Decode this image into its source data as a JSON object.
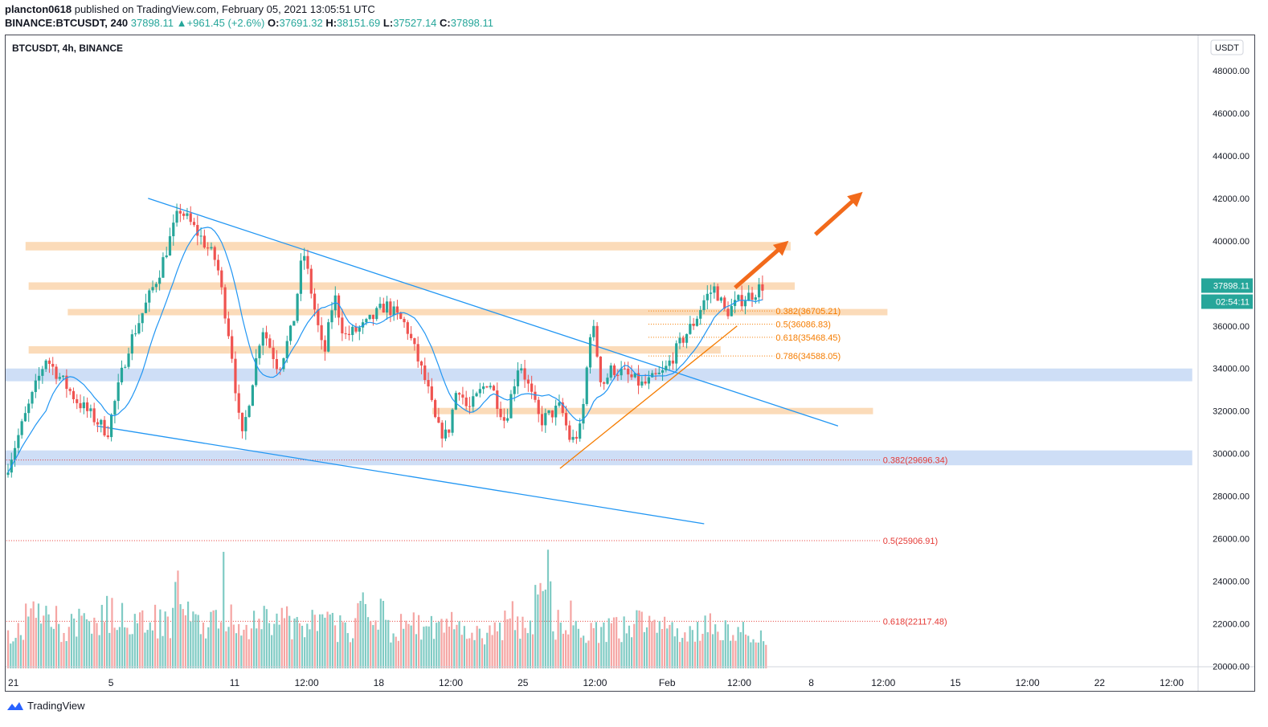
{
  "header": {
    "publisher": "plancton0618",
    "published_text": "published on TradingView.com, February 05, 2021 13:05:51 UTC",
    "symbol": "BINANCE:BTCUSDT, 240",
    "last": "37898.11",
    "change": "+961.45 (+2.6%)",
    "o_label": "O:",
    "o": "37691.32",
    "h_label": "H:",
    "h": "38151.69",
    "l_label": "L:",
    "l": "37527.14",
    "c_label": "C:",
    "c": "37898.11"
  },
  "chart_label": "BTCUSDT, 4h, BINANCE",
  "currency_label": "USDT",
  "price_tag": "37898.11",
  "countdown_tag": "02:54:11",
  "brand": "TradingView",
  "colors": {
    "up": "#26a69a",
    "down": "#ef5350",
    "zone_orange": "#fbd7b1",
    "zone_blue": "#c5d8f5",
    "trendline": "#2196f3",
    "fib_orange": "#f57c00",
    "fib_red": "#e53935",
    "arrow": "#f26a1b"
  },
  "chart_data": {
    "type": "candlestick",
    "ylim": [
      20000,
      49500
    ],
    "y_ticks": [
      "48000.00",
      "46000.00",
      "44000.00",
      "42000.00",
      "40000.00",
      "38000.00",
      "36000.00",
      "34000.00",
      "32000.00",
      "30000.00",
      "28000.00",
      "26000.00",
      "24000.00",
      "22000.00",
      "20000.00"
    ],
    "y_tick_values": [
      48000,
      46000,
      44000,
      42000,
      40000,
      38000,
      36000,
      34000,
      32000,
      30000,
      28000,
      26000,
      24000,
      22000,
      20000
    ],
    "x_ticks": [
      {
        "label": "21",
        "t": 0
      },
      {
        "label": "5",
        "t": 5
      },
      {
        "label": "11",
        "t": 11
      },
      {
        "label": "12:00",
        "t": 14.5
      },
      {
        "label": "18",
        "t": 18
      },
      {
        "label": "12:00",
        "t": 21.5
      },
      {
        "label": "25",
        "t": 25
      },
      {
        "label": "12:00",
        "t": 28.5
      },
      {
        "label": "Feb",
        "t": 32
      },
      {
        "label": "12:00",
        "t": 35.5
      },
      {
        "label": "8",
        "t": 39
      },
      {
        "label": "12:00",
        "t": 42.5
      },
      {
        "label": "15",
        "t": 46
      },
      {
        "label": "12:00",
        "t": 49.5
      },
      {
        "label": "22",
        "t": 53
      },
      {
        "label": "12:00",
        "t": 56.5
      }
    ],
    "price_series": {
      "name": "",
      "t": [
        0,
        2,
        3.5,
        5,
        6,
        7.5,
        8.5,
        9.5,
        10.3,
        11,
        11.5,
        12.5,
        13.3,
        14,
        14.5,
        15.5,
        16,
        16.5,
        17.5,
        18.5,
        19.5,
        20.5,
        21,
        21.5,
        22,
        22.5,
        23.5,
        24.3,
        25,
        26,
        27,
        27.5,
        28,
        28.5,
        29,
        29.5,
        30,
        31,
        32,
        33,
        33.5,
        34,
        34.5,
        35,
        35.7,
        36.3,
        36.8
      ],
      "close": [
        29000,
        34500,
        32500,
        31000,
        35000,
        38500,
        41500,
        40200,
        39000,
        35000,
        30500,
        36000,
        34000,
        36000,
        39600,
        34500,
        37500,
        35500,
        36000,
        37000,
        36000,
        33200,
        31200,
        30800,
        33300,
        32000,
        33500,
        31500,
        34400,
        31500,
        32200,
        30500,
        31200,
        36400,
        33200,
        34000,
        33800,
        33200,
        33800,
        35500,
        36200,
        37300,
        37800,
        36600,
        37200,
        37500,
        37898.11
      ]
    },
    "volume_series": {
      "name": "",
      "axis": "relative",
      "values": [
        0.35,
        0.55,
        0.5,
        0.4,
        0.45,
        0.5,
        0.55,
        0.45,
        0.5,
        0.45,
        0.75,
        0.5,
        0.45,
        0.55,
        0.45,
        0.55,
        0.5,
        0.4,
        0.45,
        0.45,
        0.4,
        0.65,
        0.55,
        0.4,
        0.45,
        0.4,
        0.45,
        0.4,
        0.35,
        0.4,
        0.45,
        0.4,
        1.0,
        0.45,
        0.4,
        0.35,
        0.4,
        0.4,
        0.45,
        0.4,
        0.4,
        0.4,
        0.42,
        0.4,
        0.35,
        0.32,
        0.3
      ]
    },
    "zones": [
      {
        "color": "orange",
        "low": 39550,
        "high": 39950,
        "t_start": 0.85,
        "t_end": 38.0
      },
      {
        "color": "orange",
        "low": 37700,
        "high": 38050,
        "t_start": 1.0,
        "t_end": 38.2
      },
      {
        "color": "orange",
        "low": 36500,
        "high": 36800,
        "t_start": 2.9,
        "t_end": 42.7
      },
      {
        "color": "orange",
        "low": 34700,
        "high": 35050,
        "t_start": 1.0,
        "t_end": 34.6
      },
      {
        "color": "orange",
        "low": 31850,
        "high": 32150,
        "t_start": 20.6,
        "t_end": 42.0
      },
      {
        "color": "blue",
        "low": 33400,
        "high": 34000,
        "t_start": -0.2,
        "t_end": 57.5
      },
      {
        "color": "blue",
        "low": 29450,
        "high": 30150,
        "t_start": -0.2,
        "t_end": 57.5
      }
    ],
    "trendlines": [
      {
        "color": "blue",
        "t1": 6.8,
        "p1": 42000,
        "t2": 40.3,
        "p2": 31300
      },
      {
        "color": "blue",
        "t1": 4.3,
        "p1": 31300,
        "t2": 33.8,
        "p2": 26700
      },
      {
        "color": "orange",
        "t1": 26.8,
        "p1": 29300,
        "t2": 35.4,
        "p2": 36000
      }
    ],
    "fib_levels": [
      {
        "label": "0.382(36705.21)",
        "value": 36705.21,
        "t_start": 31.1,
        "color": "orange"
      },
      {
        "label": "0.5(36086.83)",
        "value": 36086.83,
        "t_start": 31.1,
        "color": "orange"
      },
      {
        "label": "0.618(35468.45)",
        "value": 35468.45,
        "t_start": 31.1,
        "color": "orange"
      },
      {
        "label": "0.786(34588.05)",
        "value": 34588.05,
        "t_start": 31.1,
        "color": "orange"
      },
      {
        "label": "0.382(29696.34)",
        "value": 29696.34,
        "t_start": -0.2,
        "color": "red"
      },
      {
        "label": "0.5(25906.91)",
        "value": 25906.91,
        "t_start": -0.2,
        "color": "red"
      },
      {
        "label": "0.618(22117.48)",
        "value": 22117.48,
        "t_start": -0.2,
        "color": "red"
      }
    ],
    "arrows": [
      {
        "t1": 35.3,
        "p1": 37800,
        "t2": 37.9,
        "p2": 40000
      },
      {
        "t1": 39.2,
        "p1": 40300,
        "t2": 41.5,
        "p2": 42300
      }
    ]
  }
}
